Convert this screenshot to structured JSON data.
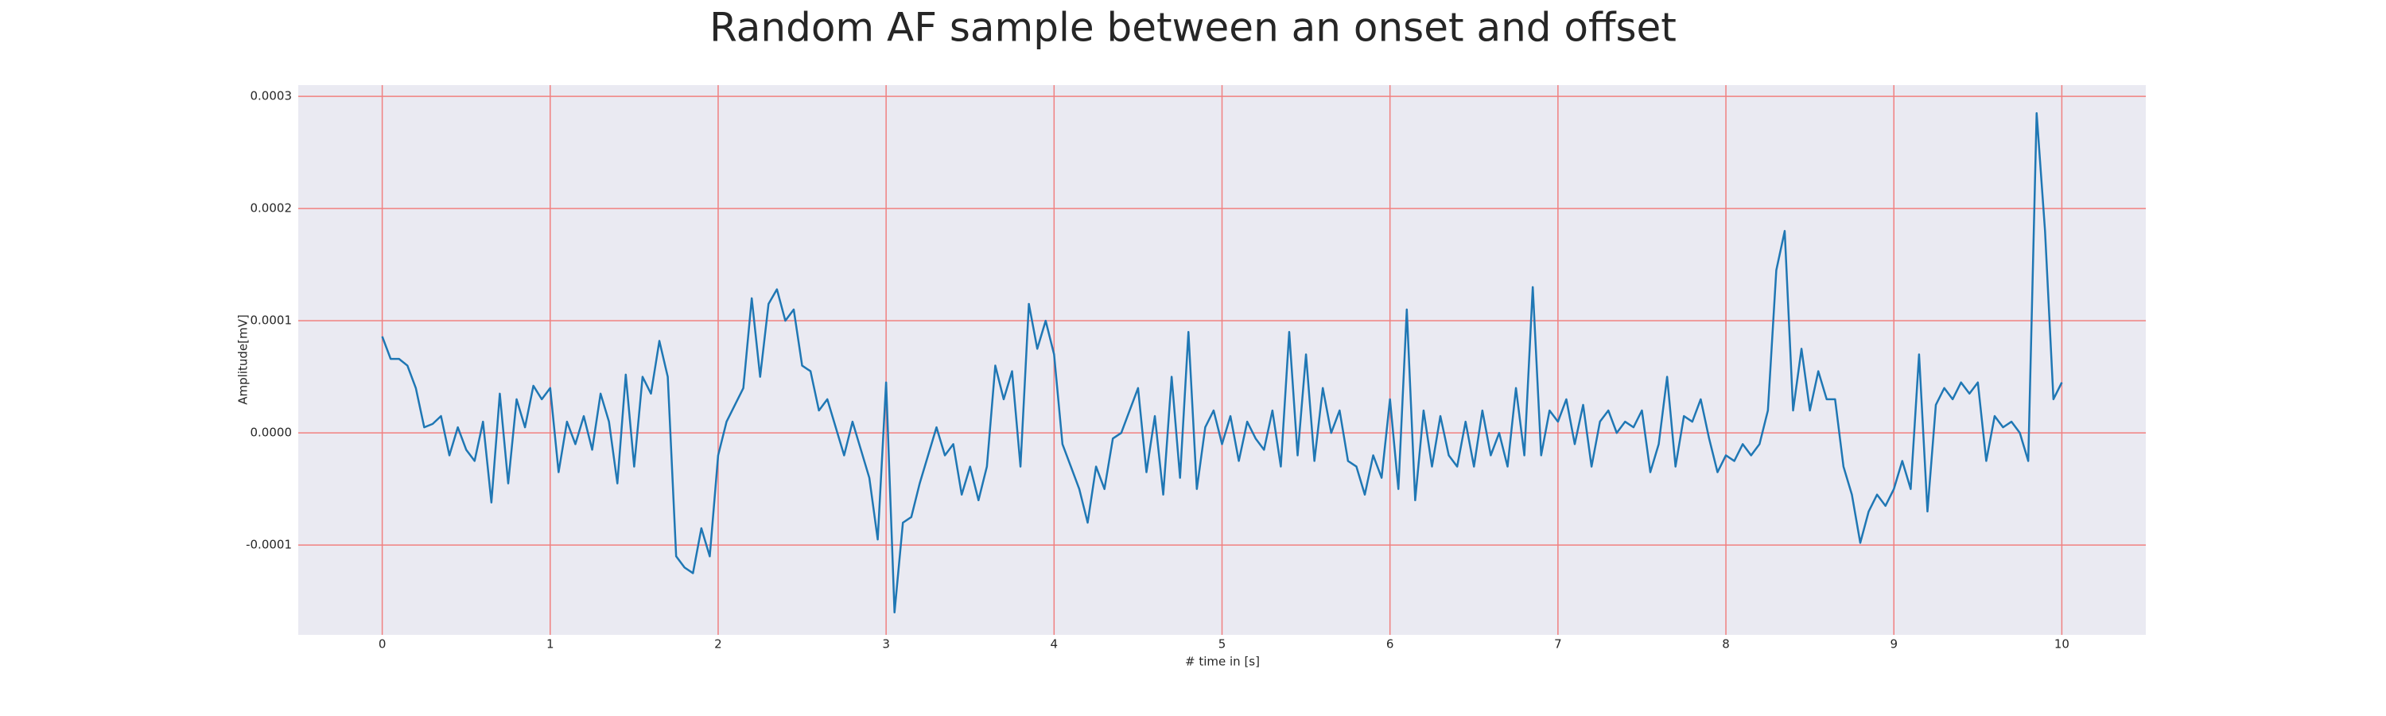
{
  "chart_data": {
    "type": "line",
    "title": "Random AF sample between an onset and offset",
    "xlabel": "# time in [s]",
    "ylabel": "Amplitude[mV]",
    "x": [
      0,
      0.05,
      0.1,
      0.15,
      0.2,
      0.25,
      0.3,
      0.35,
      0.4,
      0.45,
      0.5,
      0.55,
      0.6,
      0.65,
      0.7,
      0.75,
      0.8,
      0.85,
      0.9,
      0.95,
      1,
      1.05,
      1.1,
      1.15,
      1.2,
      1.25,
      1.3,
      1.35,
      1.4,
      1.45,
      1.5,
      1.55,
      1.6,
      1.65,
      1.7,
      1.75,
      1.8,
      1.85,
      1.9,
      1.95,
      2,
      2.05,
      2.1,
      2.15,
      2.2,
      2.25,
      2.3,
      2.35,
      2.4,
      2.45,
      2.5,
      2.55,
      2.6,
      2.65,
      2.7,
      2.75,
      2.8,
      2.85,
      2.9,
      2.95,
      3,
      3.05,
      3.1,
      3.15,
      3.2,
      3.25,
      3.3,
      3.35,
      3.4,
      3.45,
      3.5,
      3.55,
      3.6,
      3.65,
      3.7,
      3.75,
      3.8,
      3.85,
      3.9,
      3.95,
      4,
      4.05,
      4.1,
      4.15,
      4.2,
      4.25,
      4.3,
      4.35,
      4.4,
      4.45,
      4.5,
      4.55,
      4.6,
      4.65,
      4.7,
      4.75,
      4.8,
      4.85,
      4.9,
      4.95,
      5,
      5.05,
      5.1,
      5.15,
      5.2,
      5.25,
      5.3,
      5.35,
      5.4,
      5.45,
      5.5,
      5.55,
      5.6,
      5.65,
      5.7,
      5.75,
      5.8,
      5.85,
      5.9,
      5.95,
      6,
      6.05,
      6.1,
      6.15,
      6.2,
      6.25,
      6.3,
      6.35,
      6.4,
      6.45,
      6.5,
      6.55,
      6.6,
      6.65,
      6.7,
      6.75,
      6.8,
      6.85,
      6.9,
      6.95,
      7,
      7.05,
      7.1,
      7.15,
      7.2,
      7.25,
      7.3,
      7.35,
      7.4,
      7.45,
      7.5,
      7.55,
      7.6,
      7.65,
      7.7,
      7.75,
      7.8,
      7.85,
      7.9,
      7.95,
      8,
      8.05,
      8.1,
      8.15,
      8.2,
      8.25,
      8.3,
      8.35,
      8.4,
      8.45,
      8.5,
      8.55,
      8.6,
      8.65,
      8.7,
      8.75,
      8.8,
      8.85,
      8.9,
      8.95,
      9,
      9.05,
      9.1,
      9.15,
      9.2,
      9.25,
      9.3,
      9.35,
      9.4,
      9.45,
      9.5,
      9.55,
      9.6,
      9.65,
      9.7,
      9.75,
      9.8,
      9.85,
      9.9,
      9.95,
      10
    ],
    "series": [
      {
        "name": "AF sample",
        "color": "#1f77b4",
        "values": [
          8.6e-05,
          6.6e-05,
          6.6e-05,
          6e-05,
          4e-05,
          5e-06,
          8e-06,
          1.5e-05,
          -2e-05,
          5e-06,
          -1.5e-05,
          -2.5e-05,
          1e-05,
          -6.2e-05,
          3.5e-05,
          -4.5e-05,
          3e-05,
          5e-06,
          4.2e-05,
          3e-05,
          4e-05,
          -3.5e-05,
          1e-05,
          -1e-05,
          1.5e-05,
          -1.5e-05,
          3.5e-05,
          1e-05,
          -4.5e-05,
          5.2e-05,
          -3e-05,
          5e-05,
          3.5e-05,
          8.2e-05,
          5e-05,
          -0.00011,
          -0.00012,
          -0.000125,
          -8.5e-05,
          -0.00011,
          -2e-05,
          1e-05,
          2.5e-05,
          4e-05,
          0.00012,
          5e-05,
          0.000115,
          0.000128,
          0.0001,
          0.00011,
          6e-05,
          5.5e-05,
          2e-05,
          3e-05,
          5e-06,
          -2e-05,
          1e-05,
          -1.5e-05,
          -4e-05,
          -9.5e-05,
          4.5e-05,
          -0.00016,
          -8e-05,
          -7.5e-05,
          -4.5e-05,
          -2e-05,
          5e-06,
          -2e-05,
          -1e-05,
          -5.5e-05,
          -3e-05,
          -6e-05,
          -3e-05,
          6e-05,
          3e-05,
          5.5e-05,
          -3e-05,
          0.000115,
          7.5e-05,
          0.0001,
          7e-05,
          -1e-05,
          -3e-05,
          -5e-05,
          -8e-05,
          -3e-05,
          -5e-05,
          -5e-06,
          0,
          2e-05,
          4e-05,
          -3.5e-05,
          1.5e-05,
          -5.5e-05,
          5e-05,
          -4e-05,
          9e-05,
          -5e-05,
          5e-06,
          2e-05,
          -1e-05,
          1.5e-05,
          -2.5e-05,
          1e-05,
          -5e-06,
          -1.5e-05,
          2e-05,
          -3e-05,
          9e-05,
          -2e-05,
          7e-05,
          -2.5e-05,
          4e-05,
          0,
          2e-05,
          -2.5e-05,
          -3e-05,
          -5.5e-05,
          -2e-05,
          -4e-05,
          3e-05,
          -5e-05,
          0.00011,
          -6e-05,
          2e-05,
          -3e-05,
          1.5e-05,
          -2e-05,
          -3e-05,
          1e-05,
          -3e-05,
          2e-05,
          -2e-05,
          0,
          -3e-05,
          4e-05,
          -2e-05,
          0.00013,
          -2e-05,
          2e-05,
          1e-05,
          3e-05,
          -1e-05,
          2.5e-05,
          -3e-05,
          1e-05,
          2e-05,
          0,
          1e-05,
          5e-06,
          2e-05,
          -3.5e-05,
          -1e-05,
          5e-05,
          -3e-05,
          1.5e-05,
          1e-05,
          3e-05,
          -5e-06,
          -3.5e-05,
          -2e-05,
          -2.5e-05,
          -1e-05,
          -2e-05,
          -1e-05,
          2e-05,
          0.000145,
          0.00018,
          2e-05,
          7.5e-05,
          2e-05,
          5.5e-05,
          3e-05,
          3e-05,
          -3e-05,
          -5.5e-05,
          -9.8e-05,
          -7e-05,
          -5.5e-05,
          -6.5e-05,
          -5e-05,
          -2.5e-05,
          -5e-05,
          7e-05,
          -7e-05,
          2.5e-05,
          4e-05,
          3e-05,
          4.5e-05,
          3.5e-05,
          4.5e-05,
          -2.5e-05,
          1.5e-05,
          5e-06,
          1e-05,
          0,
          -2.5e-05,
          0.000285,
          0.00018,
          3e-05,
          4.5e-05
        ]
      }
    ],
    "xlim": [
      -0.5,
      10.5
    ],
    "ylim": [
      -0.00018,
      0.00031
    ],
    "xticks": [
      0,
      1,
      2,
      3,
      4,
      5,
      6,
      7,
      8,
      9,
      10
    ],
    "yticks": [
      -0.0001,
      {
        "value": 0,
        "label": "0.0000"
      },
      0.0001,
      0.0002,
      0.0003
    ],
    "grid": true,
    "grid_color": "#f08080",
    "background": "#eaeaf2"
  }
}
